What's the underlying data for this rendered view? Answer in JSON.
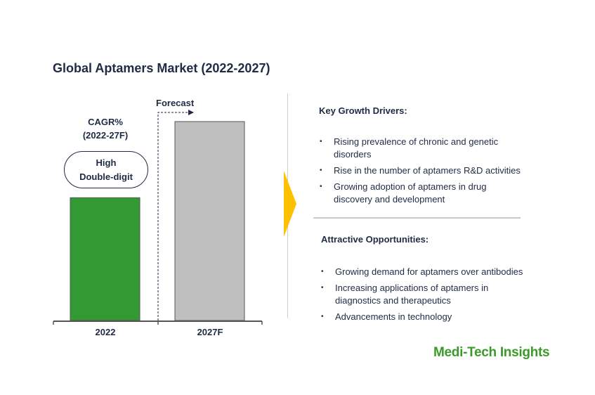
{
  "title": "Global Aptamers Market (2022-2027)",
  "cagr_label_line1": "CAGR%",
  "cagr_label_line2": "(2022-27F)",
  "cagr_value_line1": "High",
  "cagr_value_line2": "Double-digit",
  "forecast_label": "Forecast",
  "chart_data": {
    "type": "bar",
    "title": "Global Aptamers Market (2022-2027)",
    "categories": [
      "2022",
      "2027F"
    ],
    "values": [
      1.0,
      1.62
    ],
    "value_note": "relative bar heights; no values printed",
    "colors": [
      "#339933",
      "#bfbfbf"
    ],
    "xlabel": "",
    "ylabel": "",
    "ylim": [
      0,
      1.7
    ],
    "grid": false
  },
  "drivers": {
    "heading": "Key Growth Drivers:",
    "items": [
      "Rising prevalence of chronic and genetic disorders",
      "Rise in the number of aptamers R&D activities",
      "Growing adoption of aptamers in drug discovery and development"
    ]
  },
  "opportunities": {
    "heading": "Attractive Opportunities:",
    "items": [
      "Growing demand for aptamers over antibodies",
      "Increasing applications of aptamers in diagnostics and therapeutics",
      "Advancements in technology"
    ]
  },
  "logo": "Medi-Tech Insights",
  "accent": "#ffc000"
}
